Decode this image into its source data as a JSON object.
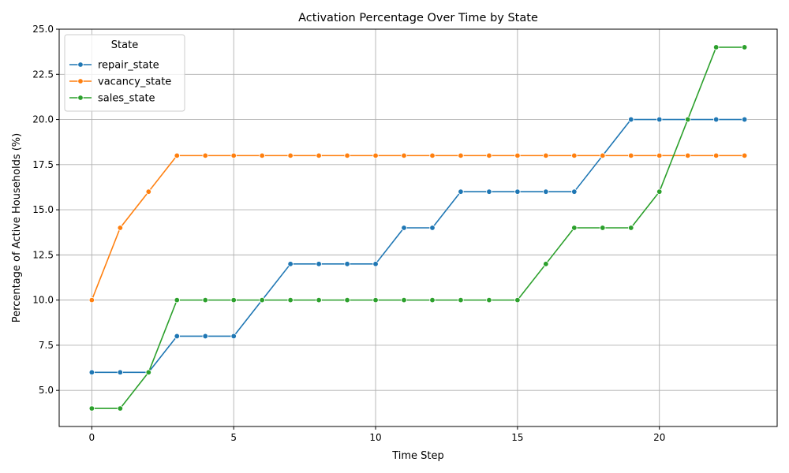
{
  "chart_data": {
    "type": "line",
    "title": "Activation Percentage Over Time by State",
    "xlabel": "Time Step",
    "ylabel": "Percentage of Active Households (%)",
    "x": [
      0,
      1,
      2,
      3,
      4,
      5,
      6,
      7,
      8,
      9,
      10,
      11,
      12,
      13,
      14,
      15,
      16,
      17,
      18,
      19,
      20,
      21,
      22,
      23
    ],
    "xlim": [
      -1.15,
      24.15
    ],
    "ylim": [
      3.0,
      25.0
    ],
    "xticks": [
      0,
      5,
      10,
      15,
      20
    ],
    "xtick_labels": [
      "0",
      "5",
      "10",
      "15",
      "20"
    ],
    "yticks": [
      5.0,
      7.5,
      10.0,
      12.5,
      15.0,
      17.5,
      20.0,
      22.5,
      25.0
    ],
    "ytick_labels": [
      "5.0",
      "7.5",
      "10.0",
      "12.5",
      "15.0",
      "17.5",
      "20.0",
      "22.5",
      "25.0"
    ],
    "grid": true,
    "legend": {
      "title": "State",
      "placement": "top-left"
    },
    "series": [
      {
        "name": "repair_state",
        "color": "#1f77b4",
        "values": [
          6,
          6,
          6,
          8,
          8,
          8,
          10,
          12,
          12,
          12,
          12,
          14,
          14,
          16,
          16,
          16,
          16,
          16,
          18,
          20,
          20,
          20,
          20,
          20
        ]
      },
      {
        "name": "vacancy_state",
        "color": "#ff7f0e",
        "values": [
          10,
          14,
          16,
          18,
          18,
          18,
          18,
          18,
          18,
          18,
          18,
          18,
          18,
          18,
          18,
          18,
          18,
          18,
          18,
          18,
          18,
          18,
          18,
          18
        ]
      },
      {
        "name": "sales_state",
        "color": "#2ca02c",
        "values": [
          4,
          4,
          6,
          10,
          10,
          10,
          10,
          10,
          10,
          10,
          10,
          10,
          10,
          10,
          10,
          10,
          12,
          14,
          14,
          14,
          16,
          20,
          24,
          24
        ]
      }
    ]
  }
}
